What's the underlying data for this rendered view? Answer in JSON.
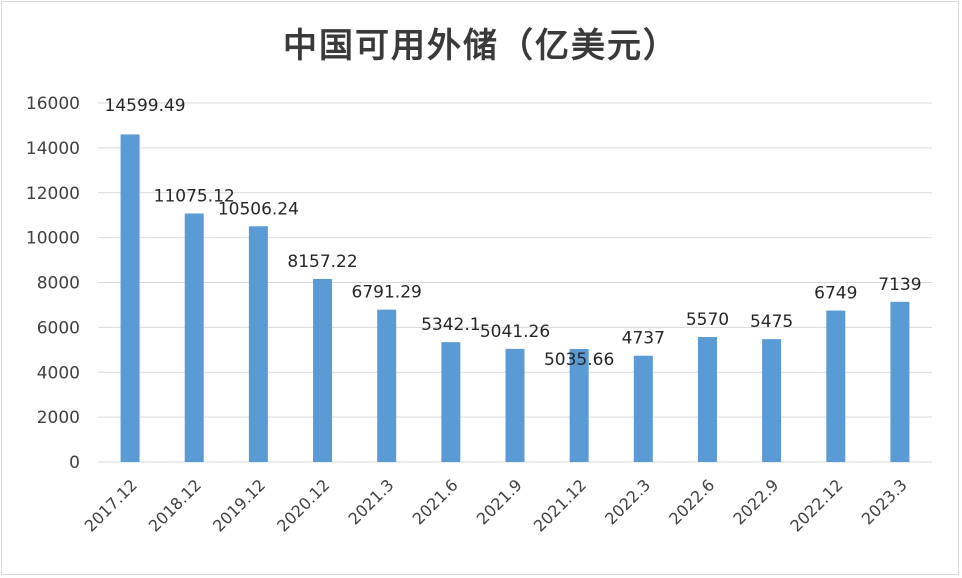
{
  "chart_data": {
    "type": "bar",
    "title": "中国可用外储（亿美元）",
    "categories": [
      "2017.12",
      "2018.12",
      "2019.12",
      "2020.12",
      "2021.3",
      "2021.6",
      "2021.9",
      "2021.12",
      "2022.3",
      "2022.6",
      "2022.9",
      "2022.12",
      "2023.3"
    ],
    "values": [
      14599.49,
      11075.12,
      10506.24,
      8157.22,
      6791.29,
      5342.1,
      5041.26,
      5035.66,
      4737,
      5570,
      5475,
      6749,
      7139
    ],
    "data_labels": [
      "14599.49",
      "11075.12",
      "10506.24",
      "8157.22",
      "6791.29",
      "5342.1",
      "5041.26",
      "5035.66",
      "4737",
      "5570",
      "5475",
      "6749",
      "7139"
    ],
    "ylim": [
      0,
      16000
    ],
    "yticks": [
      "0",
      "2000",
      "4000",
      "6000",
      "8000",
      "10000",
      "12000",
      "14000",
      "16000"
    ],
    "ytick_values": [
      0,
      2000,
      4000,
      6000,
      8000,
      10000,
      12000,
      14000,
      16000
    ],
    "grid": true,
    "bar_color": "#5b9bd5",
    "grid_color": "#d9d9d9"
  }
}
